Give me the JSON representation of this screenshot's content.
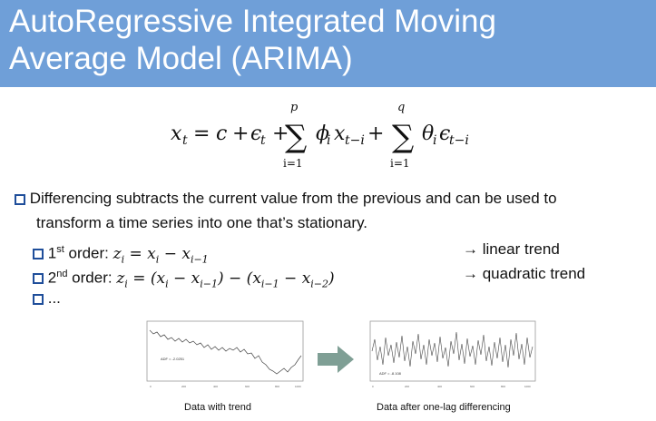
{
  "title": {
    "line1": "AutoRegressive Integrated Moving",
    "line2": "Average Model (ARIMA)"
  },
  "formula": {
    "lhs": "x",
    "lhs_sub": "t",
    "sum1_upper": "p",
    "sum1_lower": "i=1",
    "sum2_upper": "q",
    "sum2_lower": "i=1"
  },
  "bullets": {
    "main_line1": "Differencing subtracts the current value from the previous and can be used to",
    "main_line2": "transform a time series into one that’s stationary.",
    "first_order_prefix": "1",
    "first_order_sup": "st",
    "first_order_label": " order: ",
    "second_order_prefix": "2",
    "second_order_sup": "nd",
    "second_order_label": "  order: ",
    "ellipsis": "..."
  },
  "notes": {
    "first": "→ linear trend",
    "second": "→ quadratic trend"
  },
  "figures": {
    "left_caption": "Data with trend",
    "right_caption": "Data after one-lag differencing",
    "left_adf": "ADF = -2.0251",
    "right_adf": "ADF = -8.108"
  },
  "colors": {
    "title_band": "#6f9fd8",
    "bullet_box": "#1f4e9a",
    "arrow": "#7f9f95"
  }
}
